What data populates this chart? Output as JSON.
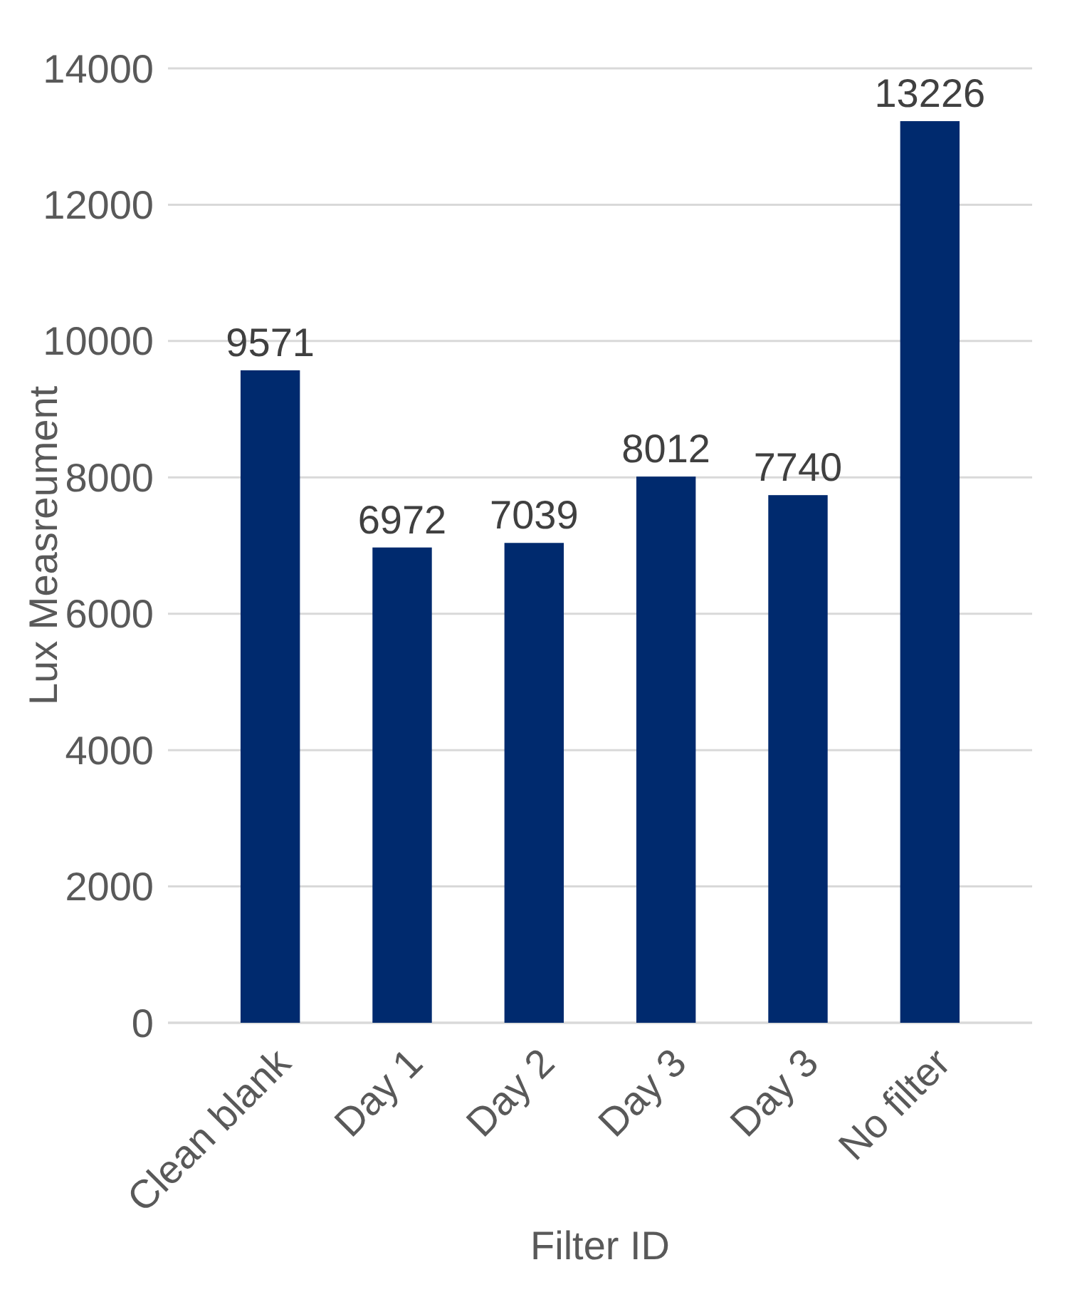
{
  "chart_data": {
    "type": "bar",
    "xlabel": "Filter ID",
    "ylabel": "Lux Measreument",
    "categories": [
      "Clean blank",
      "Day 1",
      "Day 2",
      "Day 3",
      "Day 3",
      "No filter"
    ],
    "values": [
      9571,
      6972,
      7039,
      8012,
      7740,
      13226
    ],
    "color": "#002a6e",
    "ylim": [
      0,
      14000
    ],
    "yticks": [
      0,
      2000,
      4000,
      6000,
      8000,
      10000,
      12000,
      14000
    ],
    "grid": "y",
    "data_labels": true
  }
}
